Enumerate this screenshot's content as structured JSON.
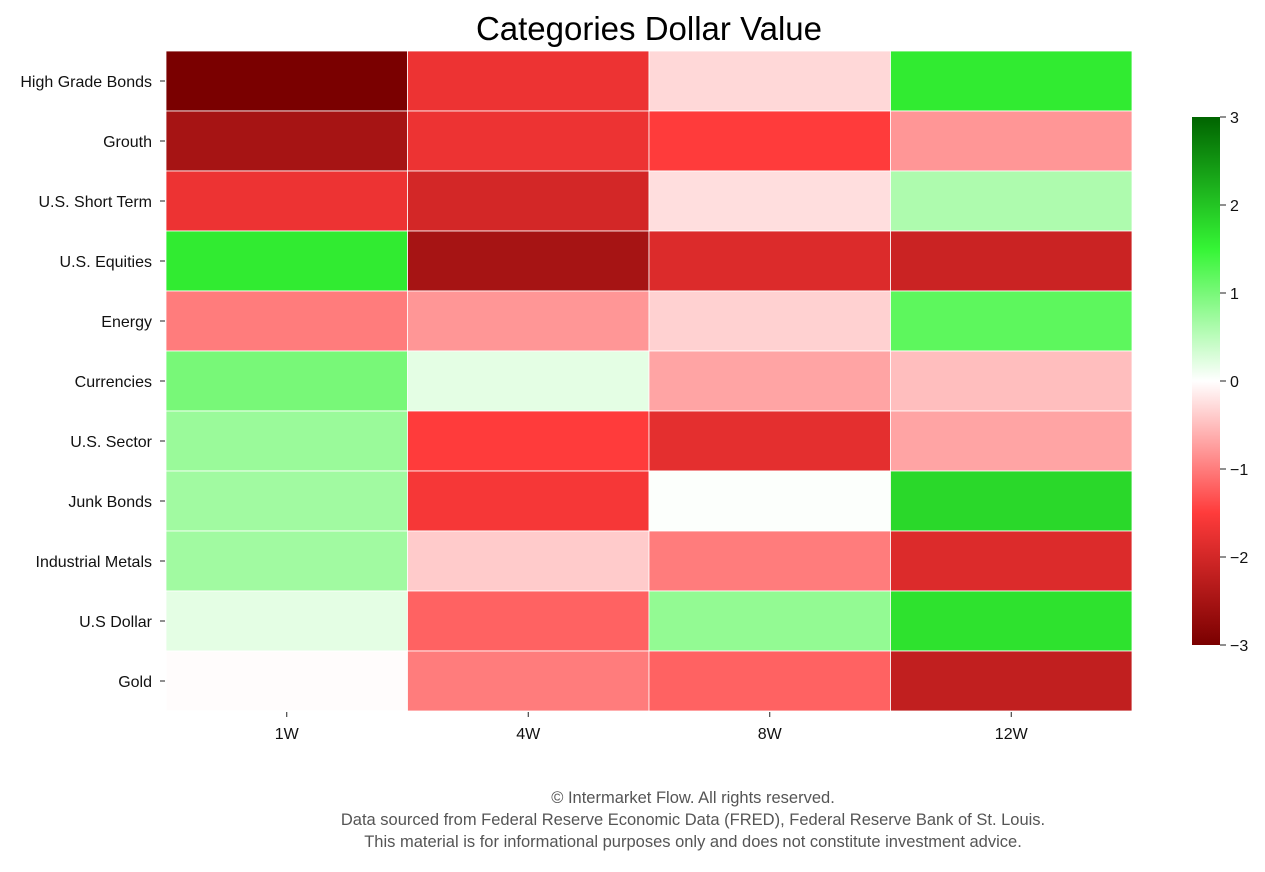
{
  "chart_data": {
    "type": "heatmap",
    "title": "Categories Dollar Value",
    "xlabel": "",
    "ylabel": "",
    "columns": [
      "1W",
      "4W",
      "8W",
      "12W"
    ],
    "rows": [
      "High Grade Bonds",
      "Grouth",
      "U.S. Short Term",
      "U.S. Equities",
      "Energy",
      "Currencies",
      "U.S. Sector",
      "Junk Bonds",
      "Industrial Metals",
      "U.S Dollar",
      "Gold"
    ],
    "values": [
      [
        -3.0,
        -1.7,
        -0.3,
        1.6
      ],
      [
        -2.5,
        -1.7,
        -1.5,
        -0.8
      ],
      [
        -1.7,
        -2.0,
        -0.25,
        0.6
      ],
      [
        1.6,
        -2.5,
        -1.9,
        -2.1
      ],
      [
        -1.0,
        -0.8,
        -0.35,
        1.2
      ],
      [
        1.0,
        0.2,
        -0.7,
        -0.5
      ],
      [
        0.75,
        -1.5,
        -1.8,
        -0.7
      ],
      [
        0.7,
        -1.6,
        0.02,
        1.8
      ],
      [
        0.7,
        -0.4,
        -1.0,
        -1.9
      ],
      [
        0.2,
        -1.2,
        0.8,
        1.7
      ],
      [
        -0.02,
        -1.0,
        -1.2,
        -2.2
      ]
    ],
    "colorbar": {
      "min": -3,
      "max": 3,
      "ticks": [
        3,
        2,
        1,
        0,
        -1,
        -2,
        -3
      ],
      "tick_labels": [
        "3",
        "2",
        "1",
        "0",
        "−1",
        "−2",
        "−3"
      ],
      "colors": {
        "neg_max": "#7a0000",
        "neg_mid": "#ff3b3b",
        "zero": "#ffffff",
        "pos_mid": "#35f535",
        "pos_max": "#006400"
      }
    },
    "grid": false,
    "legend": "colorbar-right"
  },
  "footer": {
    "line1": "© Intermarket Flow. All rights reserved.",
    "line2": "Data sourced from Federal Reserve Economic Data (FRED), Federal Reserve Bank of St. Louis.",
    "line3": "This material is for informational purposes only and does not constitute investment advice."
  }
}
